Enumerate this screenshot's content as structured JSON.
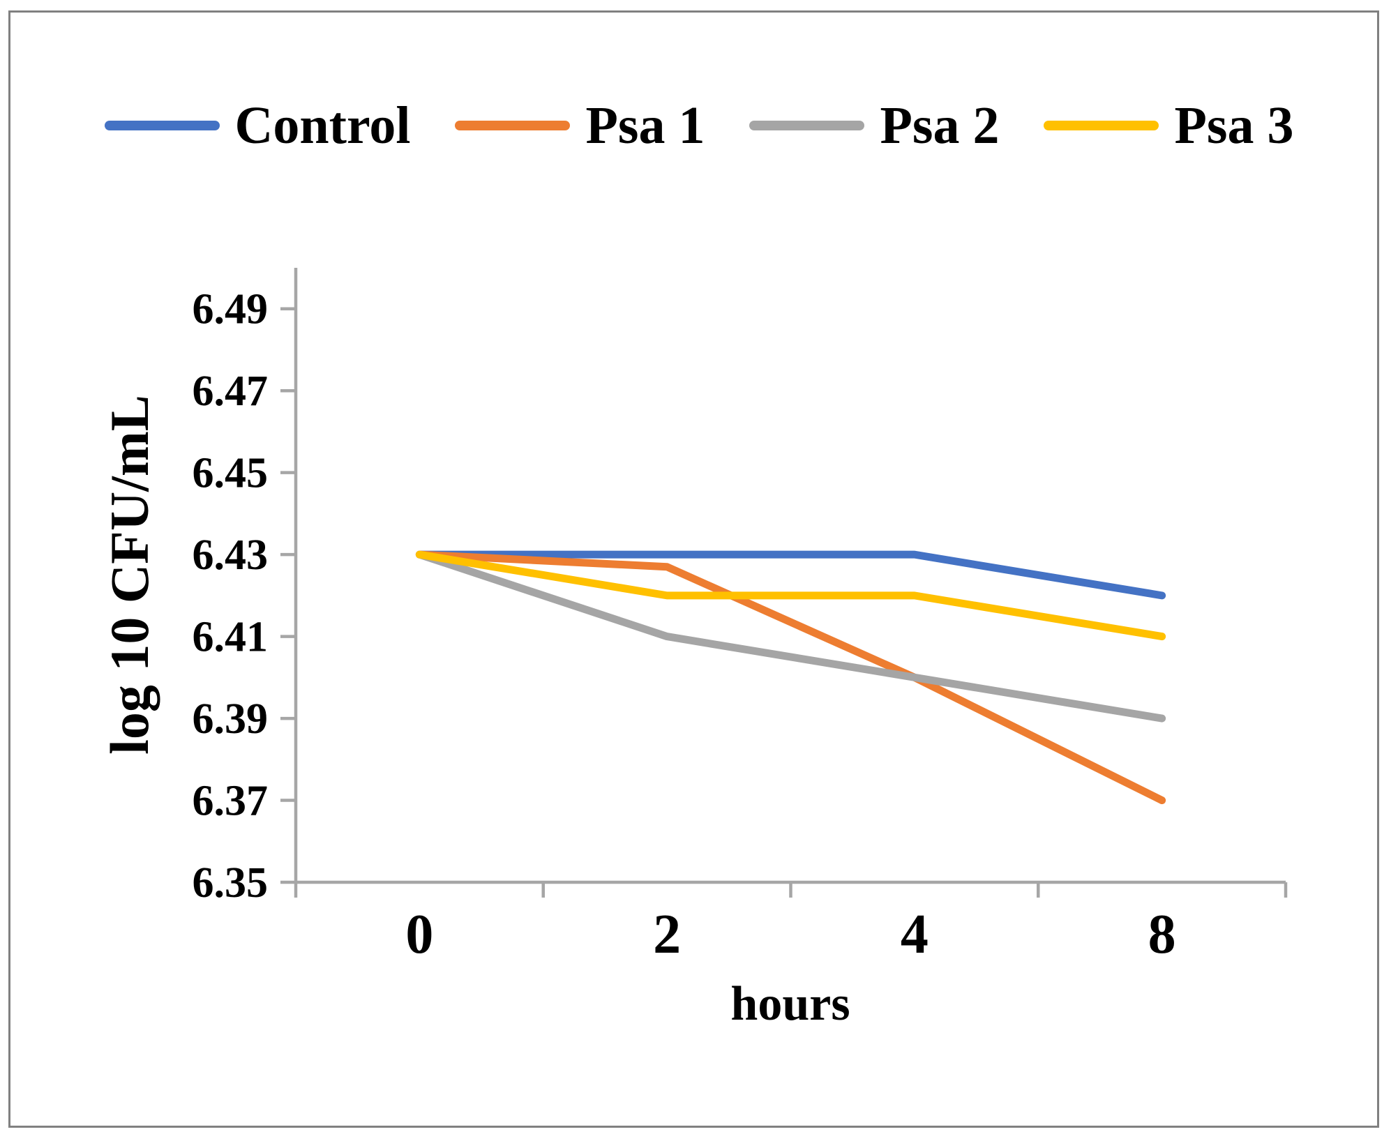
{
  "figure": {
    "x_axis_title": "hours",
    "y_axis_title": "log 10 CFU/mL"
  },
  "chart_data": {
    "type": "line",
    "title": "",
    "xlabel": "hours",
    "ylabel": "log 10 CFU/mL",
    "categories": [
      "0",
      "2",
      "4",
      "8"
    ],
    "y_ticks": [
      6.35,
      6.37,
      6.39,
      6.41,
      6.43,
      6.45,
      6.47,
      6.49
    ],
    "ylim": [
      6.35,
      6.5
    ],
    "grid": false,
    "legend_position": "top",
    "axis_color": "#A6A6A6",
    "series": [
      {
        "name": "Control",
        "color": "#4472C4",
        "values": [
          6.43,
          6.43,
          6.43,
          6.42
        ]
      },
      {
        "name": "Psa 1",
        "color": "#ED7D31",
        "values": [
          6.43,
          6.427,
          6.4,
          6.37
        ]
      },
      {
        "name": "Psa 2",
        "color": "#A5A5A5",
        "values": [
          6.43,
          6.41,
          6.4,
          6.39
        ]
      },
      {
        "name": "Psa 3",
        "color": "#FFC000",
        "values": [
          6.43,
          6.42,
          6.42,
          6.41
        ]
      }
    ]
  }
}
